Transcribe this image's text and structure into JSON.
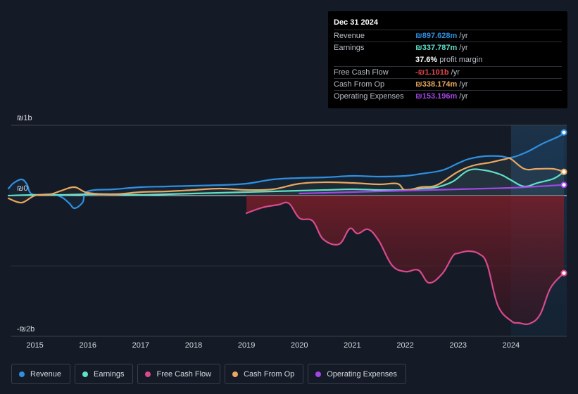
{
  "colors": {
    "revenue": "#2f8fe0",
    "earnings": "#5fe0c8",
    "free_cash_flow": "#d94a8c",
    "cash_from_op": "#e8a860",
    "operating_expenses": "#a246e6"
  },
  "tooltip": {
    "date": "Dec 31 2024",
    "rows": [
      {
        "label": "Revenue",
        "value": "₪897.628m",
        "unit": "/yr",
        "color": "#2f8fe0"
      },
      {
        "label": "Earnings",
        "value": "₪337.787m",
        "unit": "/yr",
        "color": "#5fe0c8"
      },
      {
        "label": "",
        "value": "37.6%",
        "unit": "profit margin",
        "color": "#ffffff"
      },
      {
        "label": "Free Cash Flow",
        "value": "-₪1.101b",
        "unit": "/yr",
        "color": "#e5484d"
      },
      {
        "label": "Cash From Op",
        "value": "₪338.174m",
        "unit": "/yr",
        "color": "#e8a860"
      },
      {
        "label": "Operating Expenses",
        "value": "₪153.196m",
        "unit": "/yr",
        "color": "#a246e6"
      }
    ]
  },
  "legend": [
    {
      "label": "Revenue",
      "color": "#2f8fe0"
    },
    {
      "label": "Earnings",
      "color": "#5fe0c8"
    },
    {
      "label": "Free Cash Flow",
      "color": "#d94a8c"
    },
    {
      "label": "Cash From Op",
      "color": "#e8a860"
    },
    {
      "label": "Operating Expenses",
      "color": "#a246e6"
    }
  ],
  "chart_data": {
    "type": "line",
    "y_tick_labels": [
      {
        "value": 1000,
        "label": "₪1b"
      },
      {
        "value": 0,
        "label": "₪0"
      },
      {
        "value": -2000,
        "label": "-₪2b"
      }
    ],
    "ylim": [
      -2000,
      1000
    ],
    "xlim": [
      2014.5,
      2025.0
    ],
    "x_ticks": [
      2015,
      2016,
      2017,
      2018,
      2019,
      2020,
      2021,
      2022,
      2023,
      2024
    ],
    "x_tick_labels": [
      "2015",
      "2016",
      "2017",
      "2018",
      "2019",
      "2020",
      "2021",
      "2022",
      "2023",
      "2024"
    ],
    "forecast_start": 2024.0,
    "series": [
      {
        "name": "Revenue",
        "color": "#2f8fe0",
        "x": [
          2014.5,
          2014.6,
          2014.75,
          2014.85,
          2014.95,
          2015.3,
          2015.5,
          2015.65,
          2015.75,
          2015.9,
          2016.0,
          2016.5,
          2017.0,
          2017.5,
          2018.0,
          2018.5,
          2019.0,
          2019.5,
          2020.0,
          2020.5,
          2021.0,
          2021.5,
          2022.0,
          2022.3,
          2022.7,
          2023.0,
          2023.2,
          2023.5,
          2023.8,
          2024.0,
          2024.3,
          2024.6,
          2024.9,
          2025.0
        ],
        "y": [
          100,
          180,
          230,
          160,
          20,
          20,
          -20,
          -110,
          -180,
          -100,
          60,
          90,
          120,
          130,
          140,
          150,
          170,
          230,
          250,
          260,
          280,
          270,
          280,
          310,
          360,
          460,
          520,
          560,
          560,
          540,
          620,
          740,
          840,
          898
        ]
      },
      {
        "name": "Earnings",
        "color": "#5fe0c8",
        "x": [
          2014.5,
          2015.0,
          2015.5,
          2016.0,
          2016.5,
          2017.0,
          2017.5,
          2018.0,
          2018.5,
          2019.0,
          2019.5,
          2020.0,
          2020.5,
          2021.0,
          2021.5,
          2022.0,
          2022.3,
          2022.6,
          2022.9,
          2023.2,
          2023.5,
          2023.8,
          2024.0,
          2024.25,
          2024.5,
          2024.8,
          2025.0
        ],
        "y": [
          0,
          10,
          10,
          20,
          20,
          10,
          20,
          30,
          40,
          50,
          60,
          70,
          80,
          90,
          80,
          80,
          100,
          120,
          200,
          360,
          360,
          300,
          220,
          130,
          180,
          240,
          338
        ]
      },
      {
        "name": "Free Cash Flow",
        "color": "#d94a8c",
        "x": [
          2019.0,
          2019.3,
          2019.6,
          2019.8,
          2020.0,
          2020.25,
          2020.45,
          2020.75,
          2020.95,
          2021.1,
          2021.3,
          2021.5,
          2021.75,
          2022.0,
          2022.25,
          2022.45,
          2022.7,
          2022.9,
          2023.0,
          2023.2,
          2023.4,
          2023.55,
          2023.75,
          2024.0,
          2024.15,
          2024.35,
          2024.55,
          2024.75,
          2025.0
        ],
        "y": [
          -250,
          -170,
          -130,
          -110,
          -320,
          -360,
          -620,
          -690,
          -470,
          -540,
          -480,
          -640,
          -990,
          -1080,
          -1060,
          -1240,
          -1110,
          -860,
          -820,
          -790,
          -830,
          -980,
          -1560,
          -1780,
          -1810,
          -1820,
          -1690,
          -1310,
          -1101
        ]
      },
      {
        "name": "Cash From Op",
        "color": "#e8a860",
        "x": [
          2014.5,
          2014.75,
          2015.0,
          2015.3,
          2015.5,
          2015.75,
          2016.0,
          2016.5,
          2017.0,
          2017.5,
          2018.0,
          2018.5,
          2019.0,
          2019.5,
          2020.0,
          2020.5,
          2021.0,
          2021.5,
          2021.85,
          2022.0,
          2022.3,
          2022.6,
          2023.0,
          2023.3,
          2023.6,
          2023.9,
          2024.0,
          2024.25,
          2024.5,
          2024.8,
          2025.0
        ],
        "y": [
          -40,
          -100,
          0,
          20,
          70,
          120,
          40,
          20,
          50,
          60,
          80,
          100,
          80,
          90,
          170,
          190,
          180,
          160,
          170,
          80,
          120,
          150,
          340,
          430,
          470,
          520,
          520,
          380,
          380,
          380,
          338
        ]
      },
      {
        "name": "Operating Expenses",
        "color": "#a246e6",
        "x": [
          2020.0,
          2020.5,
          2021.0,
          2021.5,
          2022.0,
          2022.5,
          2023.0,
          2023.5,
          2024.0,
          2024.5,
          2025.0
        ],
        "y": [
          30,
          40,
          50,
          60,
          70,
          80,
          90,
          100,
          110,
          130,
          153
        ]
      }
    ],
    "end_markers": [
      {
        "series": "Revenue",
        "value": 898
      },
      {
        "series": "Cash From Op",
        "value": 338
      },
      {
        "series": "Operating Expenses",
        "value": 153
      },
      {
        "series": "Free Cash Flow",
        "value": -1101
      }
    ]
  }
}
